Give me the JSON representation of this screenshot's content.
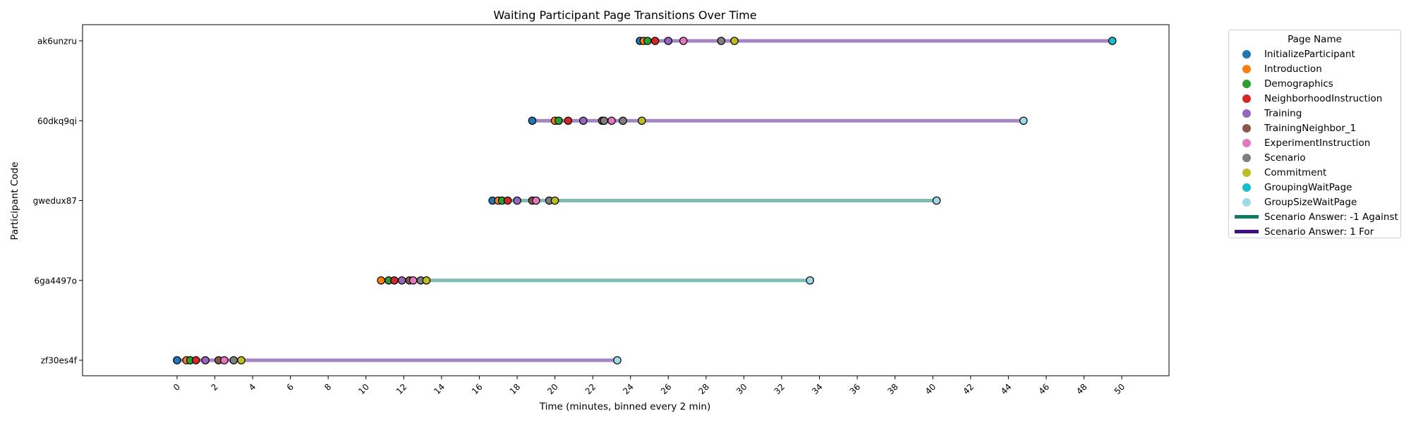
{
  "chart_data": {
    "type": "timeline-scatter",
    "title": "Waiting Participant Page Transitions Over Time",
    "xlabel": "Time (minutes, binned every 2 min)",
    "ylabel": "Participant Code",
    "xlim": [
      -5,
      52.5
    ],
    "xticks": [
      0,
      2,
      4,
      6,
      8,
      10,
      12,
      14,
      16,
      18,
      20,
      22,
      24,
      26,
      28,
      30,
      32,
      34,
      36,
      38,
      40,
      42,
      44,
      46,
      48,
      50
    ],
    "grid": false,
    "legend": {
      "title": "Page Name",
      "placement": "outside-right-top",
      "pages": [
        {
          "name": "InitializeParticipant",
          "color": "#1f77b4"
        },
        {
          "name": "Introduction",
          "color": "#ff7f0e"
        },
        {
          "name": "Demographics",
          "color": "#2ca02c"
        },
        {
          "name": "NeighborhoodInstruction",
          "color": "#d62728"
        },
        {
          "name": "Training",
          "color": "#9467bd"
        },
        {
          "name": "TrainingNeighbor_1",
          "color": "#8c564b"
        },
        {
          "name": "ExperimentInstruction",
          "color": "#e377c2"
        },
        {
          "name": "Scenario",
          "color": "#7f7f7f"
        },
        {
          "name": "Commitment",
          "color": "#bcbd22"
        },
        {
          "name": "GroupingWaitPage",
          "color": "#17becf"
        },
        {
          "name": "GroupSizeWaitPage",
          "color": "#9edae5"
        }
      ],
      "answers": [
        {
          "name": "Scenario Answer: -1 Against",
          "color": "#137a63"
        },
        {
          "name": "Scenario Answer: 1 For",
          "color": "#3f0f82"
        }
      ]
    },
    "line_colors": {
      "-1": "#7fbcb1",
      "1": "#a285c2"
    },
    "participants": [
      {
        "code": "ak6unzru",
        "answer": 1,
        "points": [
          {
            "page": "InitializeParticipant",
            "x": 24.5
          },
          {
            "page": "Introduction",
            "x": 24.7
          },
          {
            "page": "Demographics",
            "x": 24.9
          },
          {
            "page": "NeighborhoodInstruction",
            "x": 25.3
          },
          {
            "page": "Training",
            "x": 26.0
          },
          {
            "page": "ExperimentInstruction",
            "x": 26.8
          },
          {
            "page": "Scenario",
            "x": 28.8
          },
          {
            "page": "Commitment",
            "x": 29.5
          },
          {
            "page": "GroupingWaitPage",
            "x": 49.5
          }
        ]
      },
      {
        "code": "60dkq9qi",
        "answer": 1,
        "points": [
          {
            "page": "InitializeParticipant",
            "x": 18.8
          },
          {
            "page": "Introduction",
            "x": 20.0
          },
          {
            "page": "Demographics",
            "x": 20.2
          },
          {
            "page": "NeighborhoodInstruction",
            "x": 20.7
          },
          {
            "page": "Training",
            "x": 21.5
          },
          {
            "page": "TrainingNeighbor_1",
            "x": 22.5
          },
          {
            "page": "Scenario",
            "x": 22.6
          },
          {
            "page": "ExperimentInstruction",
            "x": 23.0
          },
          {
            "page": "Scenario",
            "x": 23.6
          },
          {
            "page": "Commitment",
            "x": 24.6
          },
          {
            "page": "GroupSizeWaitPage",
            "x": 44.8
          }
        ]
      },
      {
        "code": "gwedux87",
        "answer": -1,
        "points": [
          {
            "page": "InitializeParticipant",
            "x": 16.7
          },
          {
            "page": "Introduction",
            "x": 17.0
          },
          {
            "page": "Demographics",
            "x": 17.2
          },
          {
            "page": "NeighborhoodInstruction",
            "x": 17.5
          },
          {
            "page": "Training",
            "x": 18.0
          },
          {
            "page": "TrainingNeighbor_1",
            "x": 18.8
          },
          {
            "page": "ExperimentInstruction",
            "x": 19.0
          },
          {
            "page": "Scenario",
            "x": 19.7
          },
          {
            "page": "Commitment",
            "x": 20.0
          },
          {
            "page": "GroupSizeWaitPage",
            "x": 40.2
          }
        ]
      },
      {
        "code": "6ga4497o",
        "answer": -1,
        "points": [
          {
            "page": "Introduction",
            "x": 10.8
          },
          {
            "page": "Demographics",
            "x": 11.2
          },
          {
            "page": "NeighborhoodInstruction",
            "x": 11.5
          },
          {
            "page": "Training",
            "x": 11.9
          },
          {
            "page": "TrainingNeighbor_1",
            "x": 12.3
          },
          {
            "page": "ExperimentInstruction",
            "x": 12.5
          },
          {
            "page": "Scenario",
            "x": 12.9
          },
          {
            "page": "Commitment",
            "x": 13.2
          },
          {
            "page": "GroupSizeWaitPage",
            "x": 33.5
          }
        ]
      },
      {
        "code": "zf30es4f",
        "answer": 1,
        "points": [
          {
            "page": "InitializeParticipant",
            "x": 0.0
          },
          {
            "page": "Introduction",
            "x": 0.5
          },
          {
            "page": "Demographics",
            "x": 0.7
          },
          {
            "page": "NeighborhoodInstruction",
            "x": 1.0
          },
          {
            "page": "Training",
            "x": 1.5
          },
          {
            "page": "TrainingNeighbor_1",
            "x": 2.2
          },
          {
            "page": "ExperimentInstruction",
            "x": 2.5
          },
          {
            "page": "Scenario",
            "x": 3.0
          },
          {
            "page": "Commitment",
            "x": 3.4
          },
          {
            "page": "GroupSizeWaitPage",
            "x": 23.3
          }
        ]
      }
    ]
  }
}
